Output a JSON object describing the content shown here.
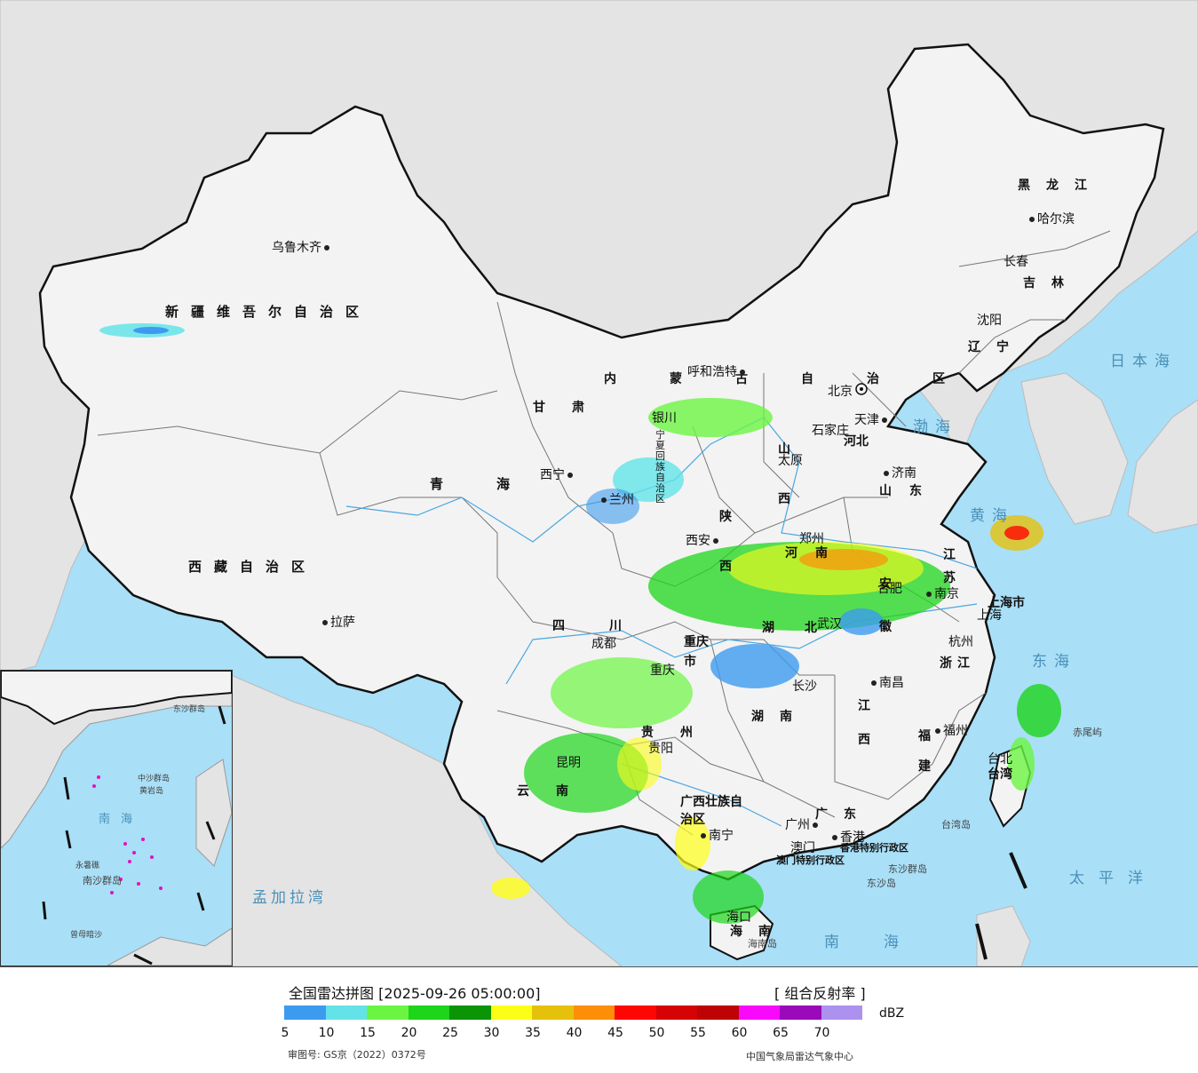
{
  "map": {
    "provinces": {
      "xinjiang": "新疆维吾尔自治区",
      "xizang": "西藏自治区",
      "qinghai": "青海",
      "gansu": "甘肃",
      "sichuan": "四川",
      "yunnan": "云南",
      "guizhou": "贵州",
      "guangxi": "广西壮族自治区",
      "guangdong": "广东",
      "hainan": "海南",
      "hunan": "湖南",
      "hubei": "湖北",
      "jiangxi": "江西",
      "fujian": "福建",
      "zhejiang": "浙江",
      "jiangsu": "江苏",
      "anhui": "安徽",
      "henan": "河南",
      "shandong": "山东",
      "shanxi": "山西",
      "shaanxi": "陕西",
      "hebei": "河北",
      "neimenggu": "内蒙古自治区",
      "ningxia": "宁夏回族自治区",
      "chongqing": "重庆市",
      "shanghai": "上海市",
      "liaoning": "辽宁",
      "jilin": "吉林",
      "heilongjiang": "黑龙江",
      "taiwan": "台湾",
      "hongkong": "香港特别行政区",
      "macau": "澳门特别行政区"
    },
    "cities": {
      "urumqi": "乌鲁木齐",
      "lhasa": "拉萨",
      "xining": "西宁",
      "lanzhou": "兰州",
      "yinchuan": "银川",
      "hohhot": "呼和浩特",
      "beijing": "北京",
      "tianjin": "天津",
      "shijiazhuang": "石家庄",
      "taiyuan": "太原",
      "jinan": "济南",
      "zhengzhou": "郑州",
      "xian": "西安",
      "chengdu": "成都",
      "chongqing": "重庆",
      "wuhan": "武汉",
      "hefei": "合肥",
      "nanjing": "南京",
      "shanghai": "上海",
      "hangzhou": "杭州",
      "nanchang": "南昌",
      "changsha": "长沙",
      "guiyang": "贵阳",
      "kunming": "昆明",
      "nanning": "南宁",
      "guangzhou": "广州",
      "hongkong": "香港",
      "macau": "澳门",
      "haikou": "海口",
      "fuzhou": "福州",
      "taipei": "台北",
      "shenyang": "沈阳",
      "changchun": "长春",
      "harbin": "哈尔滨"
    },
    "seas": {
      "bohai": "渤海",
      "yellow": "黄海",
      "east": "东海",
      "south": "南海",
      "japan": "日本海",
      "pacific": "太平洋",
      "bengal": "孟加拉湾"
    },
    "islands": {
      "chiwei": "赤尾屿",
      "taiwan_island": "台湾岛",
      "dongsha": "东沙群岛",
      "dongsha_island": "东沙岛",
      "hainan_island": "海南岛"
    }
  },
  "inset": {
    "labels": {
      "south_sea": "南海",
      "zhongsha": "中沙群岛",
      "huangyan": "黄岩岛",
      "yongshu": "永暑礁",
      "nansha": "南沙群岛",
      "zengmu": "曾母暗沙",
      "dongsha": "东沙群岛"
    }
  },
  "legend": {
    "title": "全国雷达拼图 [2025-09-26 05:00:00]",
    "product": "[ 组合反射率 ]",
    "unit": "dBZ",
    "ticks": [
      "5",
      "10",
      "15",
      "20",
      "25",
      "30",
      "35",
      "40",
      "45",
      "50",
      "55",
      "60",
      "65",
      "70"
    ],
    "colors": [
      "#3d9bef",
      "#63e3e8",
      "#6bf542",
      "#1dd51a",
      "#0b9406",
      "#fdfe17",
      "#e5c10c",
      "#fd8e08",
      "#fe0603",
      "#d50303",
      "#bd0303",
      "#f909fc",
      "#9a0aba",
      "#ad91ef"
    ],
    "approval": "审图号: GS京（2022）0372号",
    "organization": "中国气象局雷达气象中心"
  }
}
